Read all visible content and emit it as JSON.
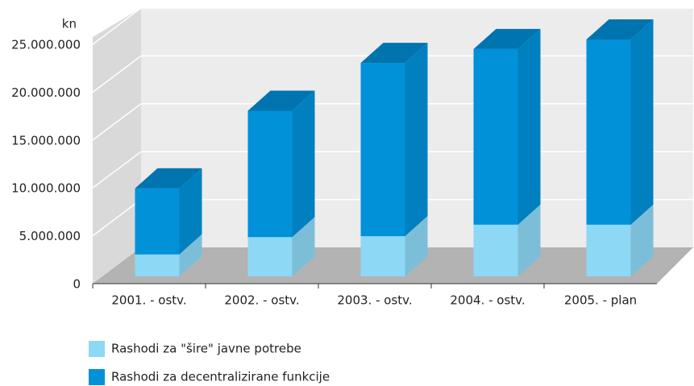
{
  "chart_data": {
    "type": "bar3d_stacked",
    "y_axis_label": "kn",
    "categories": [
      "2001. - ostv.",
      "2002. - ostv.",
      "2003. - ostv.",
      "2004. - ostv.",
      "2005. - plan"
    ],
    "series": [
      {
        "name": "Rashodi za \"šire\" javne potrebe",
        "color": "#8dd8f5",
        "values": [
          2300000,
          4100000,
          4200000,
          5400000,
          5400000
        ]
      },
      {
        "name": "Rashodi za decentralizirane funkcije",
        "color": "#0091d9",
        "values": [
          6900000,
          13200000,
          18100000,
          18350000,
          19350000
        ]
      }
    ],
    "ylim": [
      0,
      25000000
    ],
    "yticks": [
      0,
      {
        "value": 5000000,
        "label": "5.000.000"
      },
      {
        "value": 10000000,
        "label": "10.000.000"
      },
      {
        "value": 15000000,
        "label": "15.000.000"
      },
      {
        "value": 20000000,
        "label": "20.000.000"
      },
      {
        "value": 25000000,
        "label": "25.000.000"
      }
    ],
    "grid": true,
    "legend": "bottom-left"
  }
}
